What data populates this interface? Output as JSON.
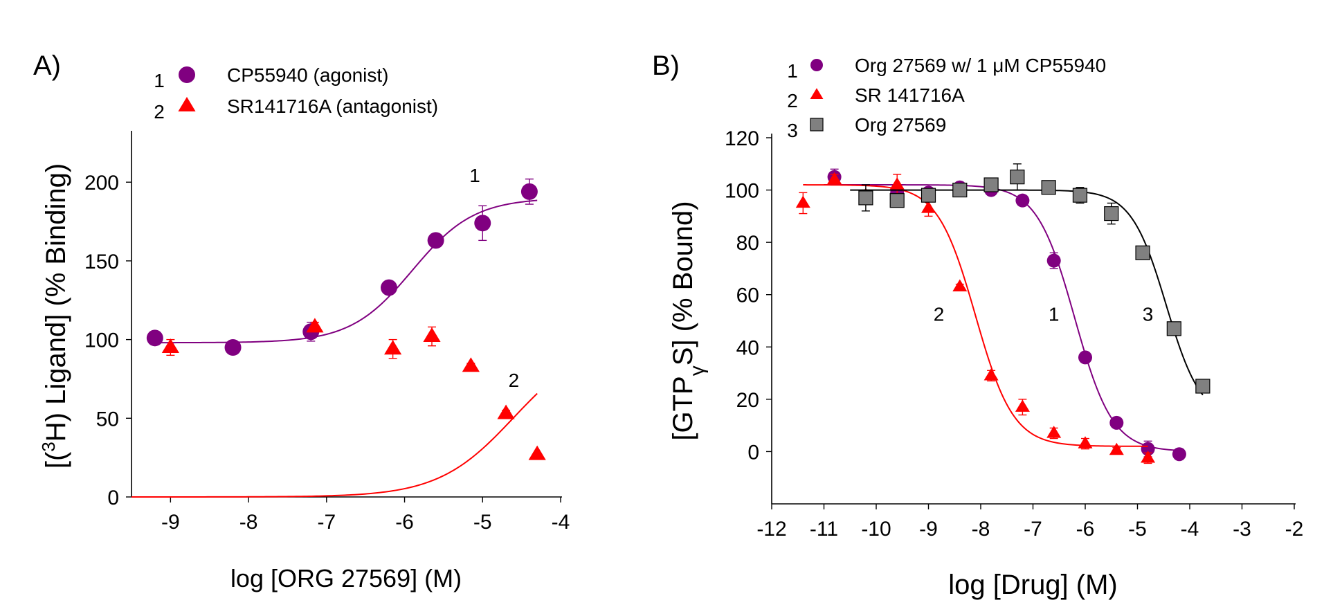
{
  "chart_data": [
    {
      "panel_label": "A)",
      "type": "scatter",
      "xlabel": "log [ORG 27569] (M)",
      "ylabel_parts": [
        "[(",
        "3",
        "H) Ligand] (% Binding)"
      ],
      "xlim": [
        -9.5,
        -4
      ],
      "ylim": [
        0,
        230
      ],
      "xticks": [
        -9,
        -8,
        -7,
        -6,
        -5,
        -4
      ],
      "yticks": [
        0,
        50,
        100,
        150,
        200
      ],
      "grid": false,
      "legend_placement": "top",
      "legend": [
        {
          "number": "1",
          "name": "CP55940 (agonist)",
          "marker": "circle",
          "color": "#800080"
        },
        {
          "number": "2",
          "name": "SR141716A (antagonist)",
          "marker": "triangle",
          "color": "#ff0000"
        }
      ],
      "series": [
        {
          "number": "1",
          "name": "CP55940 (agonist)",
          "color": "#800080",
          "marker": "circle",
          "curve_label_pos": [
            -5.1,
            200
          ],
          "fit": {
            "model": "sigmoid",
            "bottom": 98,
            "top": 190,
            "logEC50": -5.9,
            "hill": 1.1,
            "x_range": [
              -9.2,
              -4.3
            ]
          },
          "points": [
            {
              "x": -9.2,
              "y": 101,
              "err": 3
            },
            {
              "x": -8.2,
              "y": 95,
              "err": 2
            },
            {
              "x": -7.2,
              "y": 105,
              "err": 6
            },
            {
              "x": -6.2,
              "y": 133,
              "err": 3
            },
            {
              "x": -5.6,
              "y": 163,
              "err": 3
            },
            {
              "x": -5.0,
              "y": 174,
              "err": 11
            },
            {
              "x": -4.4,
              "y": 194,
              "err": 8
            }
          ]
        },
        {
          "number": "2",
          "name": "SR141716A (antagonist)",
          "color": "#ff0000",
          "marker": "triangle",
          "curve_label_pos": [
            -4.6,
            70
          ],
          "fit": {
            "model": "sigmoid",
            "bottom": 0,
            "top": 101,
            "logEC50": -4.6,
            "hill": 0.9,
            "x_range": [
              -9.5,
              -4.3
            ]
          },
          "points": [
            {
              "x": -9.0,
              "y": 95,
              "err": 5
            },
            {
              "x": -7.15,
              "y": 108,
              "err": 3
            },
            {
              "x": -6.15,
              "y": 94,
              "err": 6
            },
            {
              "x": -5.65,
              "y": 102,
              "err": 6
            },
            {
              "x": -5.15,
              "y": 83,
              "err": 2
            },
            {
              "x": -4.7,
              "y": 53,
              "err": 2
            },
            {
              "x": -4.3,
              "y": 27,
              "err": 1
            }
          ]
        }
      ]
    },
    {
      "panel_label": "B)",
      "type": "scatter",
      "xlabel": "log [Drug] (M)",
      "ylabel_parts": [
        "[GTP",
        "γ",
        "S] (% Bound)"
      ],
      "xlim": [
        -12,
        -2
      ],
      "ylim": [
        -20,
        120
      ],
      "xticks": [
        -12,
        -11,
        -10,
        -9,
        -8,
        -7,
        -6,
        -5,
        -4,
        -3,
        -2
      ],
      "yticks": [
        0,
        20,
        40,
        60,
        80,
        100,
        120
      ],
      "grid": false,
      "legend_placement": "top",
      "legend": [
        {
          "number": "1",
          "name": "Org 27569 w/ 1 μM CP55940",
          "marker": "circle",
          "color": "#800080"
        },
        {
          "number": "2",
          "name": "SR 141716A",
          "marker": "triangle",
          "color": "#ff0000"
        },
        {
          "number": "3",
          "name": "Org 27569",
          "marker": "square",
          "color": "#808080"
        }
      ],
      "series": [
        {
          "number": "1",
          "name": "Org 27569 w/ 1 μM CP55940",
          "color": "#800080",
          "line_color": "#800080",
          "marker": "circle",
          "curve_label_pos": [
            -6.6,
            50
          ],
          "fit": {
            "model": "sigmoid",
            "bottom": 0,
            "top": 102,
            "logEC50": -6.2,
            "hill": -1.2,
            "x_range": [
              -11,
              -4.15
            ]
          },
          "points": [
            {
              "x": -10.8,
              "y": 105,
              "err": 3
            },
            {
              "x": -9.6,
              "y": 99,
              "err": 1
            },
            {
              "x": -9.0,
              "y": 99,
              "err": 1
            },
            {
              "x": -8.4,
              "y": 101,
              "err": 1
            },
            {
              "x": -7.8,
              "y": 100,
              "err": 1
            },
            {
              "x": -7.2,
              "y": 96,
              "err": 1
            },
            {
              "x": -6.6,
              "y": 73,
              "err": 3
            },
            {
              "x": -6.0,
              "y": 36,
              "err": 1
            },
            {
              "x": -5.4,
              "y": 11,
              "err": 1
            },
            {
              "x": -4.8,
              "y": 1,
              "err": 3
            },
            {
              "x": -4.2,
              "y": -1,
              "err": 2
            }
          ]
        },
        {
          "number": "2",
          "name": "SR 141716A",
          "color": "#ff0000",
          "line_color": "#ff0000",
          "marker": "triangle",
          "curve_label_pos": [
            -8.8,
            50
          ],
          "fit": {
            "model": "sigmoid",
            "bottom": 2,
            "top": 102,
            "logEC50": -8.1,
            "hill": -1.2,
            "x_range": [
              -11.4,
              -4.8
            ]
          },
          "points": [
            {
              "x": -11.4,
              "y": 95,
              "err": 4
            },
            {
              "x": -10.8,
              "y": 104,
              "err": 2
            },
            {
              "x": -10.2,
              "y": 98,
              "err": 2
            },
            {
              "x": -9.6,
              "y": 102,
              "err": 4
            },
            {
              "x": -9.0,
              "y": 93,
              "err": 3
            },
            {
              "x": -8.4,
              "y": 63,
              "err": 1
            },
            {
              "x": -7.8,
              "y": 29,
              "err": 2
            },
            {
              "x": -7.2,
              "y": 17,
              "err": 3
            },
            {
              "x": -6.6,
              "y": 7,
              "err": 2
            },
            {
              "x": -6.0,
              "y": 3,
              "err": 2
            },
            {
              "x": -5.4,
              "y": 0.5,
              "err": 1
            },
            {
              "x": -4.8,
              "y": -2.5,
              "err": 2
            }
          ]
        },
        {
          "number": "3",
          "name": "Org 27569",
          "color": "#808080",
          "line_color": "#000000",
          "marker": "square",
          "curve_label_pos": [
            -4.8,
            50
          ],
          "fit": {
            "model": "sigmoid",
            "bottom": 12,
            "top": 100,
            "logEC50": -4.45,
            "hill": -1.3,
            "x_range": [
              -10.5,
              -3.75
            ]
          },
          "points": [
            {
              "x": -10.2,
              "y": 97,
              "err": 5
            },
            {
              "x": -9.6,
              "y": 96,
              "err": 2
            },
            {
              "x": -9.0,
              "y": 98,
              "err": 1
            },
            {
              "x": -8.4,
              "y": 100,
              "err": 1
            },
            {
              "x": -7.8,
              "y": 102,
              "err": 1
            },
            {
              "x": -7.3,
              "y": 105,
              "err": 5
            },
            {
              "x": -6.7,
              "y": 101,
              "err": 1
            },
            {
              "x": -6.1,
              "y": 98,
              "err": 3
            },
            {
              "x": -5.5,
              "y": 91,
              "err": 4
            },
            {
              "x": -4.9,
              "y": 76,
              "err": 1
            },
            {
              "x": -4.3,
              "y": 47,
              "err": 1
            },
            {
              "x": -3.75,
              "y": 25,
              "err": 2
            }
          ]
        }
      ]
    }
  ]
}
